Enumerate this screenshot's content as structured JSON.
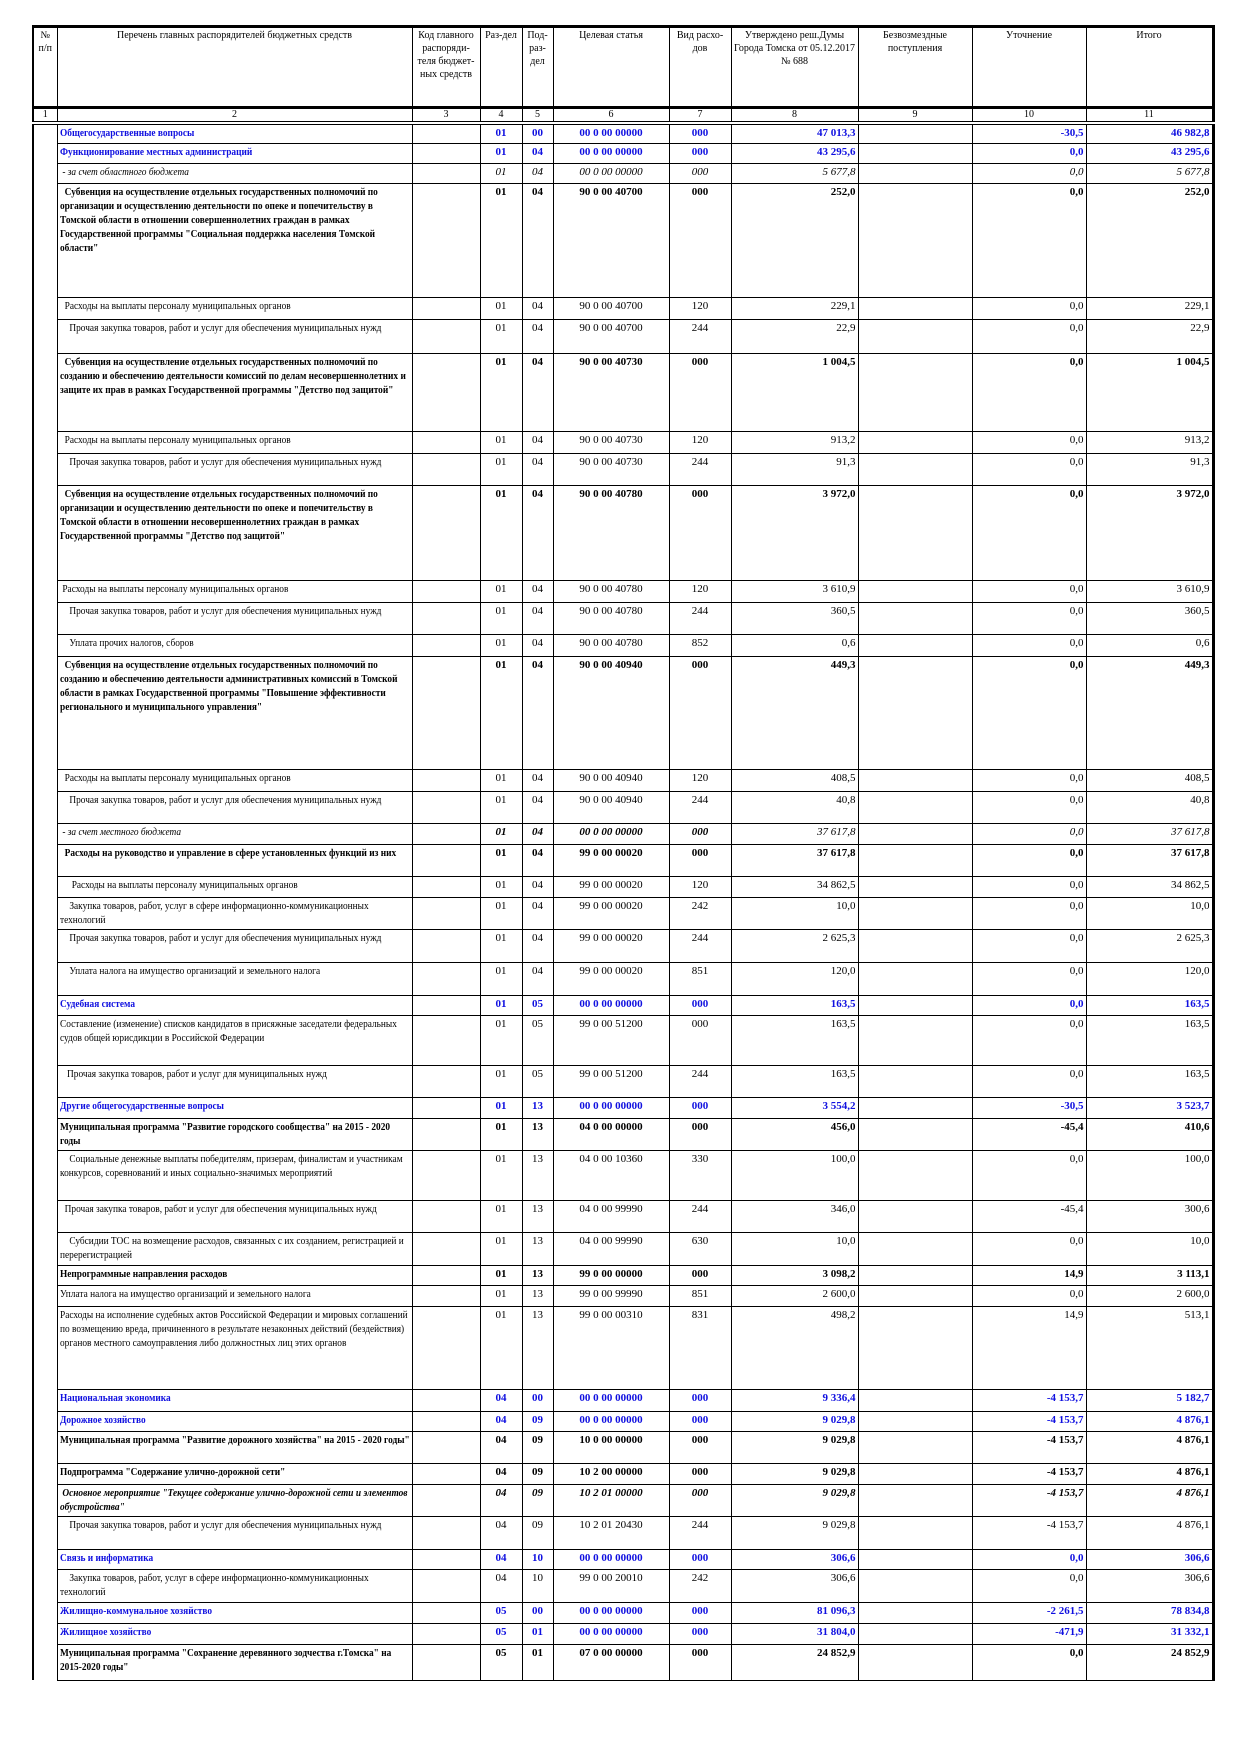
{
  "header": {
    "cols": [
      "№ п/п",
      "Перечень главных распорядителей бюджетных средств",
      "Код главного распоряди-теля бюджет-ных средств",
      "Раз-дел",
      "Под-раз-дел",
      "Целевая статья",
      "Вид расхо-дов",
      "Утверждено реш.Думы Города Томска от 05.12.2017 № 688",
      "Безвозмездные поступления",
      "Уточнение",
      "Итого"
    ],
    "numbers": [
      "1",
      "2",
      "3",
      "4",
      "5",
      "6",
      "7",
      "8",
      "9",
      "10",
      "11"
    ]
  },
  "rows": [
    {
      "style": "sec",
      "name": "Общегосударственные вопросы",
      "rz": "01",
      "pr": "00",
      "cs": "00 0 00 00000",
      "vr": "000",
      "utv": "47 013,3",
      "bezv": "",
      "utoch": "-30,5",
      "itogo": "46 982,8"
    },
    {
      "style": "sub",
      "name": "Функционирование местных администраций",
      "rz": "01",
      "pr": "04",
      "cs": "00 0 00 00000",
      "vr": "000",
      "utv": "43 295,6",
      "bezv": "",
      "utoch": "0,0",
      "itogo": "43 295,6"
    },
    {
      "style": "ital",
      "name": " - за счет областного бюджета",
      "rz": "01",
      "pr": "04",
      "cs": "00 0 00 00000",
      "vr": "000",
      "utv": "5 677,8",
      "bezv": "",
      "utoch": "0,0",
      "itogo": "5 677,8"
    },
    {
      "style": "bold",
      "name": "  Субвенция на осуществление отдельных государственных полномочий по организации и осуществлению деятельности по опеке и попечительству в Томской области в отношении совершеннолетних граждан в рамках Государственной программы \"Социальная поддержка населения Томской области\"",
      "rz": "01",
      "pr": "04",
      "cs": "90 0 00 40700",
      "vr": "000",
      "utv": "252,0",
      "bezv": "",
      "utoch": "0,0",
      "itogo": "252,0"
    },
    {
      "style": "norm",
      "name": "  Расходы на выплаты персоналу муниципальных органов",
      "rz": "01",
      "pr": "04",
      "cs": "90 0 00 40700",
      "vr": "120",
      "utv": "229,1",
      "bezv": "",
      "utoch": "0,0",
      "itogo": "229,1"
    },
    {
      "style": "norm",
      "name": "    Прочая закупка товаров, работ и услуг для обеспечения муниципальных нужд",
      "rz": "01",
      "pr": "04",
      "cs": "90 0 00 40700",
      "vr": "244",
      "utv": "22,9",
      "bezv": "",
      "utoch": "0,0",
      "itogo": "22,9"
    },
    {
      "style": "bold",
      "name": "  Субвенция на осуществление отдельных государственных полномочий по созданию и обеспечению деятельности комиссий по делам несовершеннолетних и защите их прав в рамках Государственной программы \"Детство под защитой\"",
      "rz": "01",
      "pr": "04",
      "cs": "90 0 00 40730",
      "vr": "000",
      "utv": "1 004,5",
      "bezv": "",
      "utoch": "0,0",
      "itogo": "1 004,5"
    },
    {
      "style": "norm",
      "name": "  Расходы на выплаты персоналу муниципальных органов",
      "rz": "01",
      "pr": "04",
      "cs": "90 0 00 40730",
      "vr": "120",
      "utv": "913,2",
      "bezv": "",
      "utoch": "0,0",
      "itogo": "913,2"
    },
    {
      "style": "norm",
      "name": "    Прочая закупка товаров, работ и услуг для обеспечения муниципальных нужд",
      "rz": "01",
      "pr": "04",
      "cs": "90 0 00 40730",
      "vr": "244",
      "utv": "91,3",
      "bezv": "",
      "utoch": "0,0",
      "itogo": "91,3"
    },
    {
      "style": "bold",
      "name": "  Субвенция на осуществление отдельных государственных полномочий по организации и осуществлению деятельности по опеке и попечительству в Томской области в отношении несовершеннолетних граждан в рамках Государственной программы \"Детство под защитой\"",
      "rz": "01",
      "pr": "04",
      "cs": "90 0 00 40780",
      "vr": "000",
      "utv": "3 972,0",
      "bezv": "",
      "utoch": "0,0",
      "itogo": "3 972,0"
    },
    {
      "style": "norm",
      "name": " Расходы на выплаты персоналу муниципальных органов",
      "rz": "01",
      "pr": "04",
      "cs": "90 0 00 40780",
      "vr": "120",
      "utv": "3 610,9",
      "bezv": "",
      "utoch": "0,0",
      "itogo": "3 610,9"
    },
    {
      "style": "norm",
      "name": "    Прочая закупка товаров, работ и услуг для обеспечения муниципальных нужд",
      "rz": "01",
      "pr": "04",
      "cs": "90 0 00 40780",
      "vr": "244",
      "utv": "360,5",
      "bezv": "",
      "utoch": "0,0",
      "itogo": "360,5"
    },
    {
      "style": "norm",
      "name": "    Уплата прочих налогов, сборов",
      "rz": "01",
      "pr": "04",
      "cs": "90 0 00 40780",
      "vr": "852",
      "utv": "0,6",
      "bezv": "",
      "utoch": "0,0",
      "itogo": "0,6"
    },
    {
      "style": "bold",
      "name": "  Субвенция на осуществление отдельных государственных полномочий по созданию и обеспечению деятельности административных комиссий в Томской области в рамках Государственной программы \"Повышение эффективности регионального и муниципального управления\"",
      "rz": "01",
      "pr": "04",
      "cs": "90 0 00 40940",
      "vr": "000",
      "utv": "449,3",
      "bezv": "",
      "utoch": "0,0",
      "itogo": "449,3"
    },
    {
      "style": "norm",
      "name": "  Расходы на выплаты персоналу муниципальных органов",
      "rz": "01",
      "pr": "04",
      "cs": "90 0 00 40940",
      "vr": "120",
      "utv": "408,5",
      "bezv": "",
      "utoch": "0,0",
      "itogo": "408,5"
    },
    {
      "style": "norm",
      "name": "    Прочая закупка товаров, работ и услуг для обеспечения муниципальных нужд",
      "rz": "01",
      "pr": "04",
      "cs": "90 0 00 40940",
      "vr": "244",
      "utv": "40,8",
      "bezv": "",
      "utoch": "0,0",
      "itogo": "40,8"
    },
    {
      "style": "bital",
      "name": " - за счет местного бюджета",
      "rz": "01",
      "pr": "04",
      "cs": "00 0 00 00000",
      "vr": "000",
      "utv": "37 617,8",
      "bezv": "",
      "utoch": "0,0",
      "itogo": "37 617,8"
    },
    {
      "style": "bold",
      "name": "  Расходы на руководство и управление в сфере установленных функций из них",
      "rz": "01",
      "pr": "04",
      "cs": "99 0 00 00020",
      "vr": "000",
      "utv": "37 617,8",
      "bezv": "",
      "utoch": "0,0",
      "itogo": "37 617,8"
    },
    {
      "style": "norm",
      "name": "     Расходы на выплаты персоналу муниципальных органов",
      "rz": "01",
      "pr": "04",
      "cs": "99 0 00 00020",
      "vr": "120",
      "utv": "34 862,5",
      "bezv": "",
      "utoch": "0,0",
      "itogo": "34 862,5"
    },
    {
      "style": "norm",
      "name": "    Закупка товаров, работ, услуг в сфере информационно-коммуникационных технологий",
      "rz": "01",
      "pr": "04",
      "cs": "99 0 00 00020",
      "vr": "242",
      "utv": "10,0",
      "bezv": "",
      "utoch": "0,0",
      "itogo": "10,0"
    },
    {
      "style": "norm",
      "name": "    Прочая закупка товаров, работ и услуг для обеспечения муниципальных нужд",
      "rz": "01",
      "pr": "04",
      "cs": "99 0 00 00020",
      "vr": "244",
      "utv": "2 625,3",
      "bezv": "",
      "utoch": "0,0",
      "itogo": "2 625,3"
    },
    {
      "style": "norm",
      "name": "    Уплата налога на имущество организаций и земельного налога",
      "rz": "01",
      "pr": "04",
      "cs": "99 0 00 00020",
      "vr": "851",
      "utv": "120,0",
      "bezv": "",
      "utoch": "0,0",
      "itogo": "120,0"
    },
    {
      "style": "sub",
      "name": "Судебная система",
      "rz": "01",
      "pr": "05",
      "cs": "00 0 00 00000",
      "vr": "000",
      "utv": "163,5",
      "bezv": "",
      "utoch": "0,0",
      "itogo": "163,5"
    },
    {
      "style": "norm",
      "name": "Составление (изменение) списков кандидатов в присяжные заседатели федеральных судов общей юрисдикции в Российской Федерации",
      "rz": "01",
      "pr": "05",
      "cs": "99 0 00 51200",
      "vr": "000",
      "utv": "163,5",
      "bezv": "",
      "utoch": "0,0",
      "itogo": "163,5"
    },
    {
      "style": "norm",
      "name": "   Прочая закупка товаров, работ и услуг для муниципальных нужд",
      "rz": "01",
      "pr": "05",
      "cs": "99 0 00 51200",
      "vr": "244",
      "utv": "163,5",
      "bezv": "",
      "utoch": "0,0",
      "itogo": "163,5"
    },
    {
      "style": "sub",
      "name": "Другие общегосударственные вопросы",
      "rz": "01",
      "pr": "13",
      "cs": "00 0 00 00000",
      "vr": "000",
      "utv": "3 554,2",
      "bezv": "",
      "utoch": "-30,5",
      "itogo": "3 523,7"
    },
    {
      "style": "bold",
      "name": "Муниципальная программа \"Развитие городского сообщества\" на 2015 - 2020 годы",
      "rz": "01",
      "pr": "13",
      "cs": "04 0 00 00000",
      "vr": "000",
      "utv": "456,0",
      "bezv": "",
      "utoch": "-45,4",
      "itogo": "410,6"
    },
    {
      "style": "norm",
      "name": "    Социальные денежные выплаты победителям, призерам, финалистам и участникам конкурсов, соревнований и иных социально-значимых мероприятий",
      "rz": "01",
      "pr": "13",
      "cs": "04 0 00 10360",
      "vr": "330",
      "utv": "100,0",
      "bezv": "",
      "utoch": "0,0",
      "itogo": "100,0"
    },
    {
      "style": "norm",
      "name": "  Прочая закупка товаров, работ и услуг для обеспечения муниципальных нужд",
      "rz": "01",
      "pr": "13",
      "cs": "04 0 00 99990",
      "vr": "244",
      "utv": "346,0",
      "bezv": "",
      "utoch": "-45,4",
      "itogo": "300,6"
    },
    {
      "style": "norm",
      "name": "    Субсидии ТОС на возмещение расходов, связанных с их созданием, регистрацией и перерегистрацией",
      "rz": "01",
      "pr": "13",
      "cs": "04 0 00 99990",
      "vr": "630",
      "utv": "10,0",
      "bezv": "",
      "utoch": "0,0",
      "itogo": "10,0"
    },
    {
      "style": "bold",
      "name": "Непрограммные направления расходов",
      "rz": "01",
      "pr": "13",
      "cs": "99 0 00 00000",
      "vr": "000",
      "utv": "3 098,2",
      "bezv": "",
      "utoch": "14,9",
      "itogo": "3 113,1"
    },
    {
      "style": "norm",
      "name": "Уплата налога на имущество организаций и земельного налога",
      "rz": "01",
      "pr": "13",
      "cs": "99 0 00 99990",
      "vr": "851",
      "utv": "2 600,0",
      "bezv": "",
      "utoch": "0,0",
      "itogo": "2 600,0"
    },
    {
      "style": "norm",
      "name": "Расходы на исполнение судебных актов Российской Федерации и мировых соглашений по возмещению вреда, причиненного в результате незаконных действий (бездействия) органов местного самоуправления либо должностных лиц этих органов",
      "rz": "01",
      "pr": "13",
      "cs": "99 0 00 00310",
      "vr": "831",
      "utv": "498,2",
      "bezv": "",
      "utoch": "14,9",
      "itogo": "513,1"
    },
    {
      "style": "sec",
      "name": "Национальная экономика",
      "rz": "04",
      "pr": "00",
      "cs": "00 0 00 00000",
      "vr": "000",
      "utv": "9 336,4",
      "bezv": "",
      "utoch": "-4 153,7",
      "itogo": "5 182,7"
    },
    {
      "style": "sub",
      "name": "Дорожное хозяйство",
      "rz": "04",
      "pr": "09",
      "cs": "00 0 00 00000",
      "vr": "000",
      "utv": "9 029,8",
      "bezv": "",
      "utoch": "-4 153,7",
      "itogo": "4 876,1"
    },
    {
      "style": "bold",
      "name": "Муниципальная программа \"Развитие дорожного хозяйства\" на 2015 - 2020 годы\"",
      "rz": "04",
      "pr": "09",
      "cs": "10 0 00 00000",
      "vr": "000",
      "utv": "9 029,8",
      "bezv": "",
      "utoch": "-4 153,7",
      "itogo": "4 876,1"
    },
    {
      "style": "bold",
      "name": "Подпрограмма \"Содержание улично-дорожной сети\"",
      "rz": "04",
      "pr": "09",
      "cs": "10 2 00 00000",
      "vr": "000",
      "utv": "9 029,8",
      "bezv": "",
      "utoch": "-4 153,7",
      "itogo": "4 876,1"
    },
    {
      "style": "ital bold",
      "name": " Основное мероприятие \"Текущее содержание улично-дорожной сети и элементов обустройства\"",
      "rz": "04",
      "pr": "09",
      "cs": "10 2 01 00000",
      "vr": "000",
      "utv": "9 029,8",
      "bezv": "",
      "utoch": "-4 153,7",
      "itogo": "4 876,1"
    },
    {
      "style": "norm",
      "name": "    Прочая закупка товаров, работ и услуг для обеспечения муниципальных нужд",
      "rz": "04",
      "pr": "09",
      "cs": "10 2 01 20430",
      "vr": "244",
      "utv": "9 029,8",
      "bezv": "",
      "utoch": "-4 153,7",
      "itogo": "4 876,1"
    },
    {
      "style": "sub",
      "name": "Связь и информатика",
      "rz": "04",
      "pr": "10",
      "cs": "00 0 00 00000",
      "vr": "000",
      "utv": "306,6",
      "bezv": "",
      "utoch": "0,0",
      "itogo": "306,6"
    },
    {
      "style": "norm",
      "name": "    Закупка товаров, работ, услуг в сфере информационно-коммуникационных технологий",
      "rz": "04",
      "pr": "10",
      "cs": "99 0 00 20010",
      "vr": "242",
      "utv": "306,6",
      "bezv": "",
      "utoch": "0,0",
      "itogo": "306,6"
    },
    {
      "style": "sec",
      "name": "Жилищно-коммунальное хозяйство",
      "rz": "05",
      "pr": "00",
      "cs": "00 0 00 00000",
      "vr": "000",
      "utv": "81 096,3",
      "bezv": "",
      "utoch": "-2 261,5",
      "itogo": "78 834,8"
    },
    {
      "style": "sub",
      "name": "Жилищное хозяйство",
      "rz": "05",
      "pr": "01",
      "cs": "00 0 00 00000",
      "vr": "000",
      "utv": "31 804,0",
      "bezv": "",
      "utoch": "-471,9",
      "itogo": "31 332,1"
    },
    {
      "style": "bold",
      "name": "Муниципальная программа \"Сохранение деревянного зодчества г.Томска\" на 2015-2020 годы\"",
      "rz": "05",
      "pr": "01",
      "cs": "07 0 00 00000",
      "vr": "000",
      "utv": "24 852,9",
      "bezv": "",
      "utoch": "0,0",
      "itogo": "24 852,9"
    }
  ],
  "colors": {
    "section": "#1010e0",
    "text": "#000000"
  }
}
